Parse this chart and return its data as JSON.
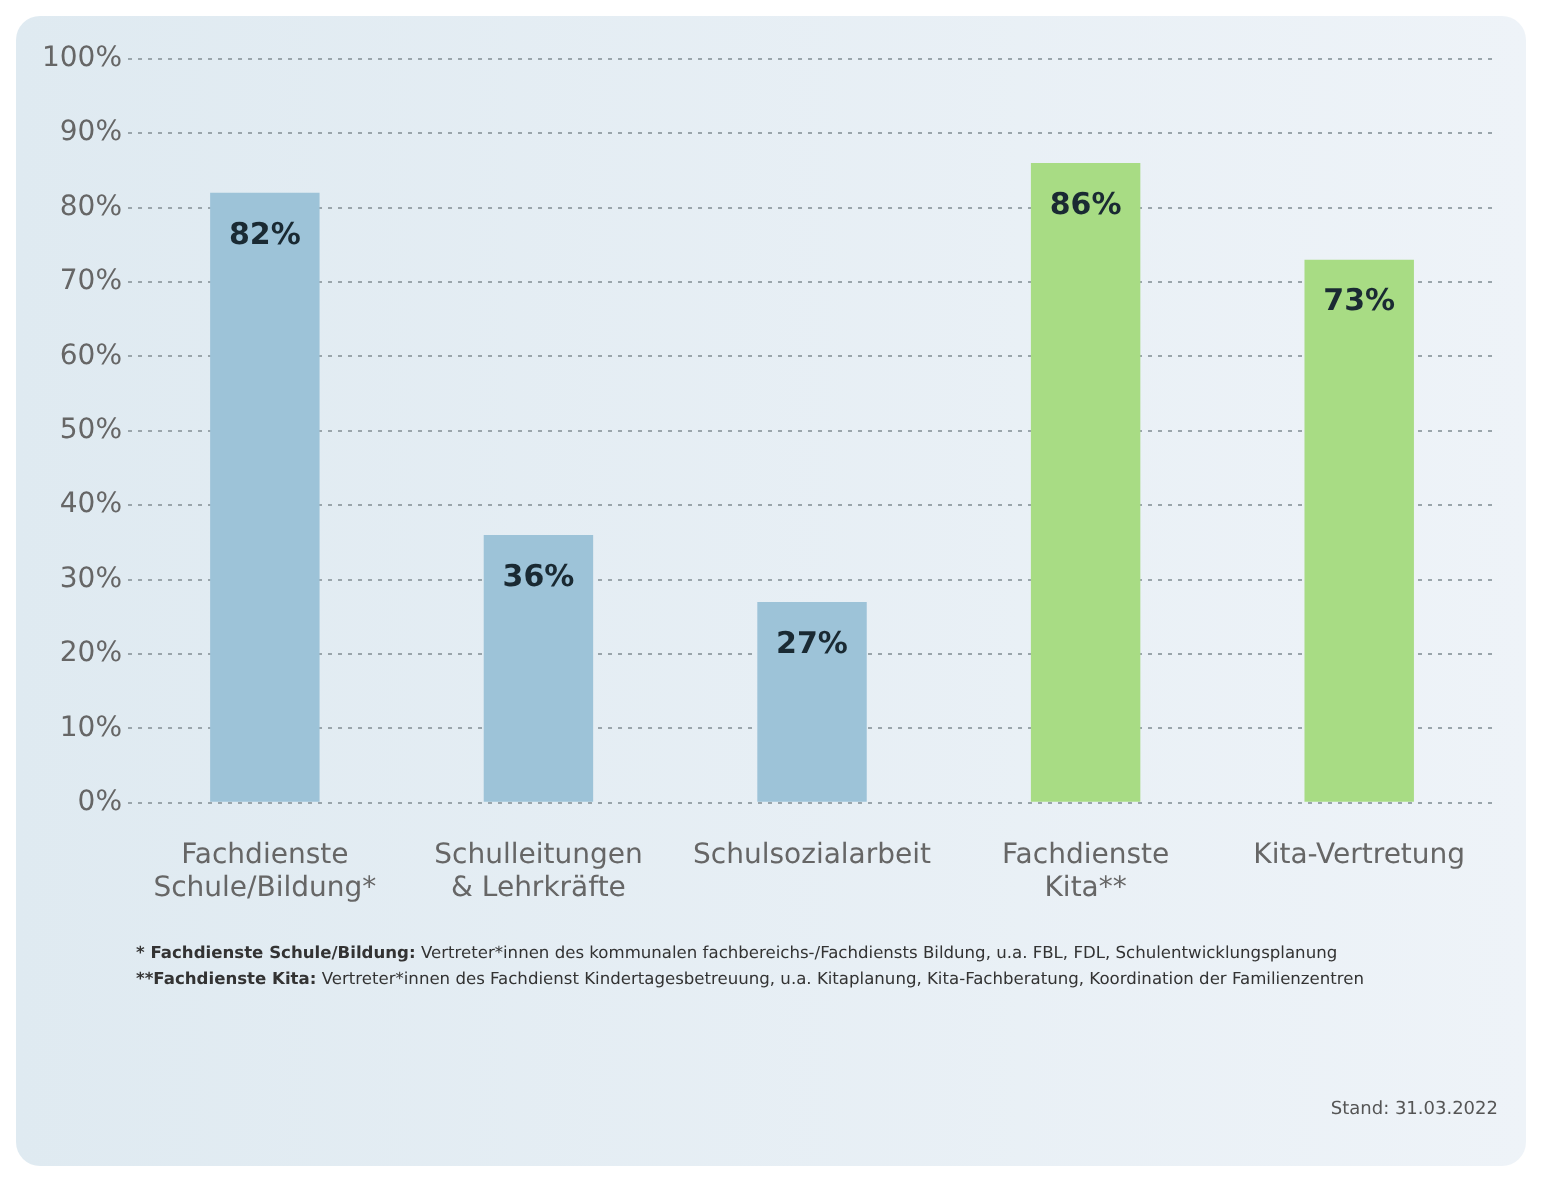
{
  "chart_data": {
    "type": "bar",
    "categories": [
      "Fachdienste Schule/Bildung*",
      "Schulleitungen & Lehrkräfte",
      "Schulsozialarbeit",
      "Fachdienste Kita**",
      "Kita-Vertretung"
    ],
    "values": [
      82,
      36,
      27,
      86,
      73
    ],
    "colors": [
      "#9dc3d8",
      "#9dc3d8",
      "#9dc3d8",
      "#a8dc84",
      "#a8dc84"
    ],
    "ylim": [
      0,
      100
    ],
    "yticks": [
      {
        "value": 0,
        "label": "0%"
      },
      {
        "value": 10,
        "label": "10%"
      },
      {
        "value": 20,
        "label": "20%"
      },
      {
        "value": 30,
        "label": "30%"
      },
      {
        "value": 40,
        "label": "40%"
      },
      {
        "value": 50,
        "label": "50%"
      },
      {
        "value": 60,
        "label": "60%"
      },
      {
        "value": 70,
        "label": "70%"
      },
      {
        "value": 80,
        "label": "80%"
      },
      {
        "value": 90,
        "label": "90%"
      },
      {
        "value": 100,
        "label": "100%"
      }
    ],
    "grid": "y",
    "legend": false,
    "value_labels": [
      "82%",
      "36%",
      "27%",
      "86%",
      "73%"
    ],
    "annotations": [
      "* Fachdienste Schule/Bildung: Vertreter*innen des kommunalen fachbereichs-/Fachdiensts Bildung, u.a. FBL, FDL, Schulentwicklungsplanung",
      "**Fachdienste Kita: Vertreter*innen des Fachdienst Kindertagesbetreuung, u.a. Kitaplanung, Kita-Fachberatung, Koordination der Familienzentren",
      "Stand: 31.03.2022"
    ]
  }
}
